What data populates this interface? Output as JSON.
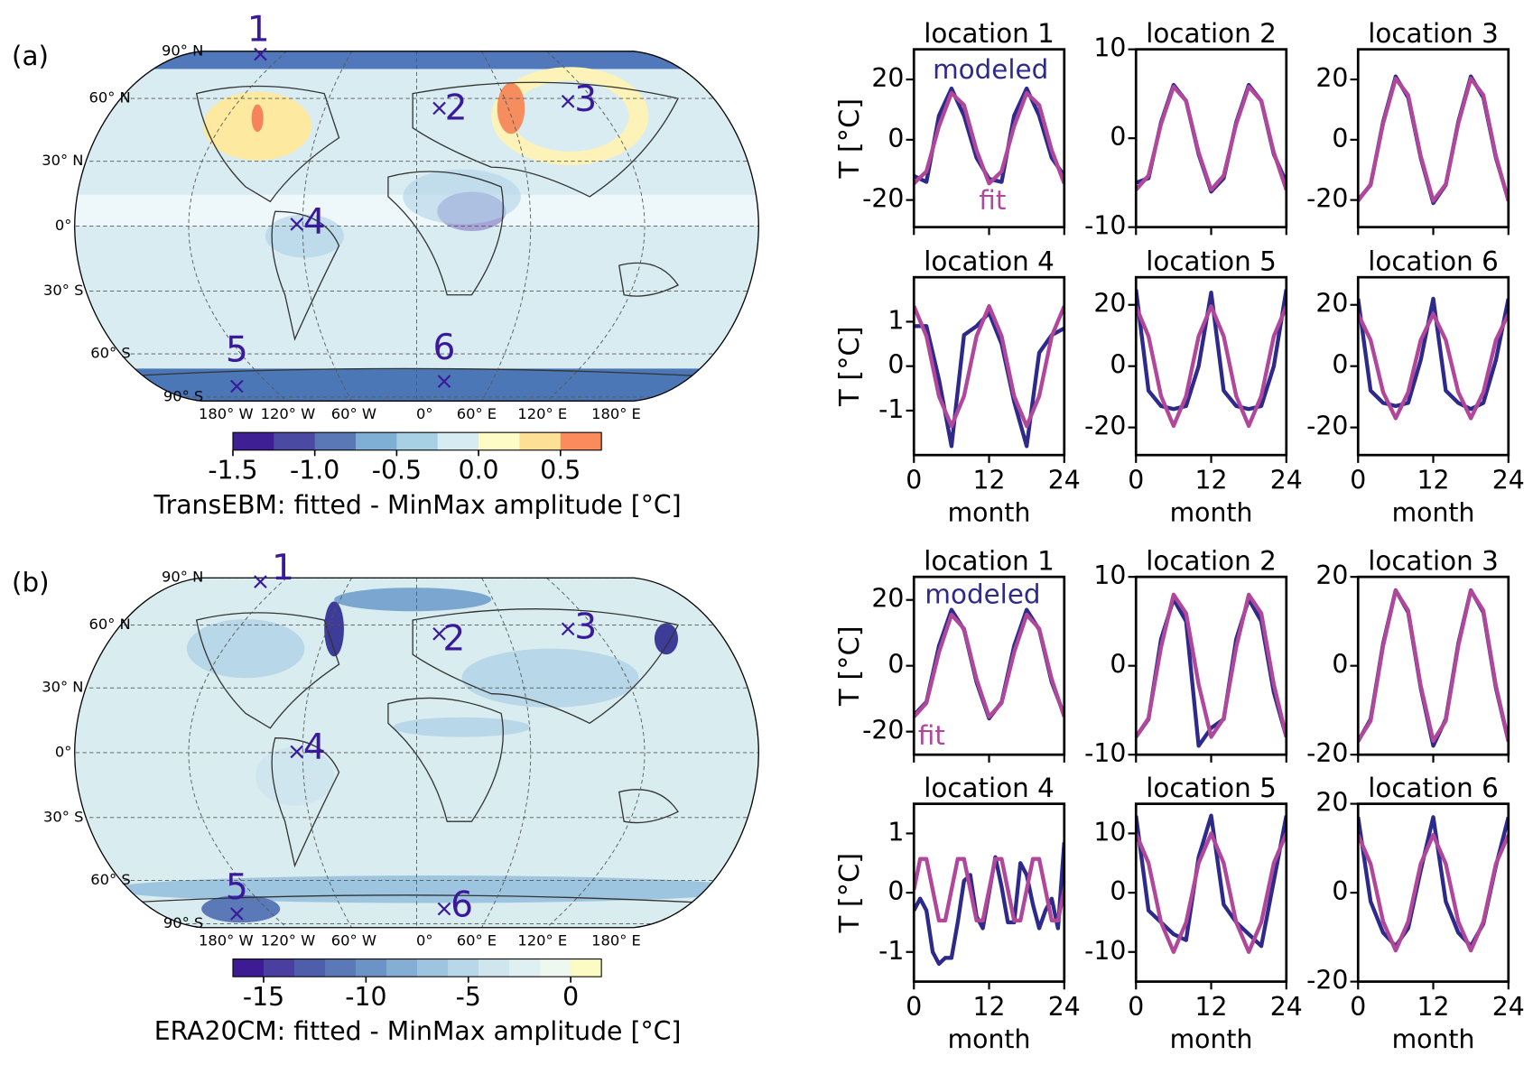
{
  "chart_data": [
    {
      "type": "map",
      "panel_label": "(a)",
      "colorbar_label": "TransEBM: fitted - MinMax amplitude [°C]",
      "lat_labels": [
        "90° N",
        "60° N",
        "30° N",
        "0°",
        "30° S",
        "60° S",
        "90° S"
      ],
      "lon_labels": [
        "180° W",
        "120° W",
        "60° W",
        "0°",
        "60° E",
        "120° E",
        "180° E"
      ],
      "locations": [
        "1",
        "2",
        "3",
        "4",
        "5",
        "6"
      ],
      "clim": [
        -1.5,
        0.75
      ],
      "cticks": [
        -1.5,
        {
          "value": -1.0,
          "label": "-1.0"
        },
        -0.5,
        {
          "value": 0.0,
          "label": "0.0"
        },
        0.5
      ],
      "colors": [
        "#3f1f94",
        "#4b4aa3",
        "#5a78b6",
        "#7fafd4",
        "#a8d0e4",
        "#d6ecf2",
        "#fdfbc6",
        "#fde095",
        "#fb8a5c"
      ]
    },
    {
      "type": "line",
      "title": "location 1",
      "x": [
        0,
        2,
        4,
        6,
        8,
        10,
        12,
        14,
        16,
        18,
        20,
        22,
        24
      ],
      "xlim": [
        0,
        24
      ],
      "xticks": [
        0,
        12,
        24
      ],
      "ylim": [
        -29,
        30
      ],
      "yticks": [
        -20,
        0,
        20
      ],
      "ylabel": "T [°C]",
      "series": [
        {
          "name": "modeled",
          "color": "#2e2a8c",
          "values": [
            -12,
            -14,
            8,
            17,
            8,
            -6,
            -13,
            -14,
            8,
            17,
            8,
            -6,
            -12
          ]
        },
        {
          "name": "fit",
          "color": "#b0479a",
          "values": [
            -14.5,
            -10.5,
            4.5,
            15.5,
            11.5,
            -3.5,
            -14.5,
            -10.5,
            4.5,
            15.5,
            11.5,
            -3.5,
            -14.5
          ]
        }
      ]
    },
    {
      "type": "line",
      "title": "location 2",
      "x": [
        0,
        2,
        4,
        6,
        8,
        10,
        12,
        14,
        16,
        18,
        20,
        22,
        24
      ],
      "xlim": [
        0,
        24
      ],
      "xticks": [
        0,
        12,
        24
      ],
      "ylim": [
        -10,
        10
      ],
      "yticks": [
        -10,
        0,
        10
      ],
      "series": [
        {
          "color": "#2e2a8c",
          "values": [
            -5,
            -4.5,
            1.8,
            6,
            4.2,
            -1.8,
            -6,
            -4.5,
            1.8,
            6,
            4.2,
            -1.8,
            -5
          ]
        },
        {
          "color": "#b0479a",
          "values": [
            -5.8,
            -4.2,
            1.6,
            5.8,
            4.2,
            -1.6,
            -5.8,
            -4.2,
            1.6,
            5.8,
            4.2,
            -1.6,
            -5.8
          ]
        }
      ]
    },
    {
      "type": "line",
      "title": "location 3",
      "x": [
        0,
        2,
        4,
        6,
        8,
        10,
        12,
        14,
        16,
        18,
        20,
        22,
        24
      ],
      "xlim": [
        0,
        24
      ],
      "xticks": [
        0,
        12,
        24
      ],
      "ylim": [
        -29,
        30
      ],
      "yticks": [
        -20,
        0,
        20
      ],
      "series": [
        {
          "color": "#2e2a8c",
          "values": [
            -20,
            -15,
            6,
            21,
            14,
            -6,
            -21,
            -15,
            6,
            21,
            14,
            -6,
            -20
          ]
        },
        {
          "color": "#b0479a",
          "values": [
            -20.3,
            -14.8,
            5.4,
            20.3,
            14.8,
            -5.4,
            -20.3,
            -14.8,
            5.4,
            20.3,
            14.8,
            -5.4,
            -20.3
          ]
        }
      ]
    },
    {
      "type": "line",
      "title": "location 4",
      "x": [
        0,
        2,
        4,
        6,
        8,
        10,
        12,
        14,
        16,
        18,
        20,
        22,
        24
      ],
      "xlim": [
        0,
        24
      ],
      "xticks": [
        0,
        12,
        24
      ],
      "ylim": [
        -2,
        2
      ],
      "yticks": [
        -1,
        0,
        1
      ],
      "ylabel": "T [°C]",
      "series": [
        {
          "color": "#2e2a8c",
          "values": [
            0.9,
            0.9,
            -0.3,
            -1.8,
            0.7,
            0.9,
            1.2,
            0.5,
            -0.8,
            -1.8,
            0.3,
            0.7,
            0.85
          ]
        },
        {
          "color": "#b0479a",
          "values": [
            1.35,
            0.675,
            -0.675,
            -1.35,
            -0.675,
            0.675,
            1.35,
            0.675,
            -0.675,
            -1.35,
            -0.675,
            0.675,
            1.35
          ]
        }
      ]
    },
    {
      "type": "line",
      "title": "location 5",
      "x": [
        0,
        2,
        4,
        6,
        8,
        10,
        12,
        14,
        16,
        18,
        20,
        22,
        24
      ],
      "xlim": [
        0,
        24
      ],
      "xticks": [
        0,
        12,
        24
      ],
      "ylim": [
        -29,
        29
      ],
      "yticks": [
        -20,
        0,
        20
      ],
      "series": [
        {
          "color": "#2e2a8c",
          "values": [
            25,
            -8,
            -13,
            -14,
            -13,
            0,
            24,
            -8,
            -13,
            -14,
            -13,
            0,
            25
          ]
        },
        {
          "color": "#b0479a",
          "values": [
            19.5,
            9.75,
            -9.75,
            -19.5,
            -9.75,
            9.75,
            19.5,
            9.75,
            -9.75,
            -19.5,
            -9.75,
            9.75,
            19.5
          ]
        }
      ]
    },
    {
      "type": "line",
      "title": "location 6",
      "x": [
        0,
        2,
        4,
        6,
        8,
        10,
        12,
        14,
        16,
        18,
        20,
        22,
        24
      ],
      "xlim": [
        0,
        24
      ],
      "xticks": [
        0,
        12,
        24
      ],
      "ylim": [
        -29,
        29
      ],
      "yticks": [
        -20,
        0,
        20
      ],
      "series": [
        {
          "color": "#2e2a8c",
          "values": [
            22,
            -8,
            -12,
            -13,
            -12,
            2,
            22,
            -8,
            -12,
            -14,
            -12,
            2,
            22
          ]
        },
        {
          "color": "#b0479a",
          "values": [
            17,
            8.5,
            -8.5,
            -17,
            -8.5,
            8.5,
            17,
            8.5,
            -8.5,
            -17,
            -8.5,
            8.5,
            17
          ]
        }
      ]
    },
    {
      "type": "map",
      "panel_label": "(b)",
      "colorbar_label": "ERA20CM: fitted - MinMax amplitude [°C]",
      "lat_labels": [
        "90° N",
        "60° N",
        "30° N",
        "0°",
        "30° S",
        "60° S",
        "90° S"
      ],
      "lon_labels": [
        "180° W",
        "120° W",
        "60° W",
        "0°",
        "60° E",
        "120° E",
        "180° E"
      ],
      "locations": [
        "1",
        "2",
        "3",
        "4",
        "5",
        "6"
      ],
      "clim": [
        -16.5,
        1.5
      ],
      "cticks": [
        -15,
        -10,
        -5,
        0
      ],
      "colors": [
        "#3d1c93",
        "#4a3fa0",
        "#4f5eab",
        "#5b78b7",
        "#6b93c5",
        "#84aed4",
        "#9ec5e0",
        "#b8d7e8",
        "#cfe6ef",
        "#dff0f3",
        "#eef7f0",
        "#fcfbc3"
      ]
    },
    {
      "type": "line",
      "title": "location 1",
      "x": [
        0,
        2,
        4,
        6,
        8,
        10,
        12,
        14,
        16,
        18,
        20,
        22,
        24
      ],
      "xlim": [
        0,
        24
      ],
      "xticks": [
        0,
        12,
        24
      ],
      "ylim": [
        -27,
        27
      ],
      "yticks": [
        -20,
        0,
        20
      ],
      "ylabel": "T [°C]",
      "series": [
        {
          "name": "modeled",
          "color": "#2e2a8c",
          "values": [
            -15,
            -11,
            6,
            17,
            11,
            -5,
            -16,
            -11,
            6,
            17,
            11,
            -5,
            -15
          ]
        },
        {
          "name": "fit",
          "color": "#b0479a",
          "values": [
            -15.5,
            -11.3,
            4.1,
            15.5,
            11.3,
            -4.1,
            -15.5,
            -11.3,
            4.1,
            15.5,
            11.3,
            -4.1,
            -15.5
          ]
        }
      ]
    },
    {
      "type": "line",
      "title": "location 2",
      "x": [
        0,
        2,
        4,
        6,
        8,
        10,
        12,
        14,
        16,
        18,
        20,
        22,
        24
      ],
      "xlim": [
        0,
        24
      ],
      "xticks": [
        0,
        12,
        24
      ],
      "ylim": [
        -10,
        10
      ],
      "yticks": [
        -10,
        0,
        10
      ],
      "series": [
        {
          "color": "#2e2a8c",
          "values": [
            -8,
            -6,
            3,
            7.5,
            5,
            -9,
            -7,
            -6,
            3,
            7.5,
            5,
            -3,
            -8
          ]
        },
        {
          "color": "#b0479a",
          "values": [
            -8,
            -5.9,
            2.1,
            8,
            5.9,
            -2.1,
            -8,
            -5.9,
            2.1,
            8,
            5.9,
            -2.1,
            -8
          ]
        }
      ]
    },
    {
      "type": "line",
      "title": "location 3",
      "x": [
        0,
        2,
        4,
        6,
        8,
        10,
        12,
        14,
        16,
        18,
        20,
        22,
        24
      ],
      "xlim": [
        0,
        24
      ],
      "xticks": [
        0,
        12,
        24
      ],
      "ylim": [
        -20,
        20
      ],
      "yticks": [
        -20,
        0,
        20
      ],
      "series": [
        {
          "color": "#2e2a8c",
          "values": [
            -17,
            -12,
            5,
            17,
            12,
            -5,
            -18,
            -12,
            5,
            17,
            12,
            -5,
            -17
          ]
        },
        {
          "color": "#b0479a",
          "values": [
            -16.9,
            -12.4,
            4.5,
            16.9,
            12.4,
            -4.5,
            -16.9,
            -12.4,
            4.5,
            16.9,
            12.4,
            -4.5,
            -16.9
          ]
        }
      ]
    },
    {
      "type": "line",
      "title": "location 4",
      "x": [
        0,
        1,
        2,
        3,
        4,
        5,
        6,
        7,
        8,
        9,
        10,
        11,
        12,
        13,
        14,
        15,
        16,
        17,
        18,
        19,
        20,
        21,
        22,
        23,
        24
      ],
      "xlim": [
        0,
        24
      ],
      "xticks": [
        0,
        12,
        24
      ],
      "ylim": [
        -1.5,
        1.5
      ],
      "yticks": [
        -1,
        0,
        1
      ],
      "ylabel": "T [°C]",
      "series": [
        {
          "color": "#2e2a8c",
          "values": [
            -0.3,
            -0.1,
            -0.3,
            -1.0,
            -1.2,
            -1.1,
            -1.1,
            -0.5,
            0.2,
            0.3,
            -0.4,
            -0.6,
            0.0,
            0.6,
            0.1,
            -0.5,
            -0.5,
            0.5,
            0.3,
            -0.2,
            -0.6,
            -0.3,
            -0.1,
            -0.6,
            0.85
          ]
        },
        {
          "color": "#b0479a",
          "values": [
            0.05,
            0.57,
            0.57,
            0.05,
            -0.47,
            -0.47,
            0.05,
            0.57,
            0.57,
            0.05,
            -0.47,
            -0.47,
            0.05,
            0.57,
            0.57,
            0.05,
            -0.47,
            -0.47,
            0.05,
            0.57,
            0.57,
            0.05,
            -0.47,
            -0.47,
            0.05
          ]
        }
      ]
    },
    {
      "type": "line",
      "title": "location 5",
      "x": [
        0,
        2,
        4,
        6,
        8,
        10,
        12,
        14,
        16,
        18,
        20,
        22,
        24
      ],
      "xlim": [
        0,
        24
      ],
      "xticks": [
        0,
        12,
        24
      ],
      "ylim": [
        -15,
        15
      ],
      "yticks": [
        -10,
        0,
        10
      ],
      "series": [
        {
          "color": "#2e2a8c",
          "values": [
            13,
            -3,
            -5,
            -7,
            -8,
            6,
            13,
            -2,
            -5,
            -7,
            -9,
            2,
            13
          ]
        },
        {
          "color": "#b0479a",
          "values": [
            10,
            5,
            -5,
            -10,
            -5,
            5,
            10,
            5,
            -5,
            -10,
            -5,
            5,
            10
          ]
        }
      ]
    },
    {
      "type": "line",
      "title": "location 6",
      "x": [
        0,
        2,
        4,
        6,
        8,
        10,
        12,
        14,
        16,
        18,
        20,
        22,
        24
      ],
      "xlim": [
        0,
        24
      ],
      "xticks": [
        0,
        12,
        24
      ],
      "ylim": [
        -20,
        20
      ],
      "yticks": [
        -20,
        0,
        20
      ],
      "series": [
        {
          "color": "#2e2a8c",
          "values": [
            17,
            -2,
            -9,
            -12,
            -8,
            5,
            17,
            -2,
            -9,
            -12,
            -7,
            6,
            17
          ]
        },
        {
          "color": "#b0479a",
          "values": [
            13,
            6.5,
            -6.5,
            -13,
            -6.5,
            6.5,
            13,
            6.5,
            -6.5,
            -13,
            -6.5,
            6.5,
            13
          ]
        }
      ]
    }
  ]
}
